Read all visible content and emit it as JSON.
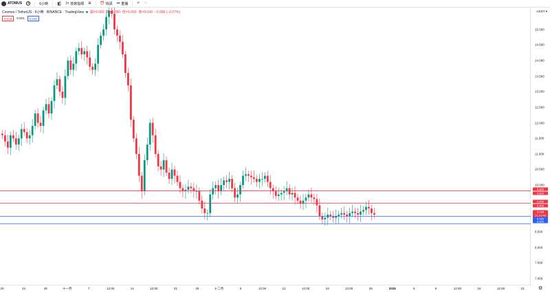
{
  "toolbar": {
    "symbol": "ATOMUS",
    "interval": "6小時",
    "indicators": "技術指標",
    "templates_icon": "grid-icon",
    "alert": "快訊",
    "replay": "重播",
    "undo_icon": "undo-icon",
    "redo_icon": "redo-icon"
  },
  "legend": {
    "title": "Cosmos / TetherUS · 6小時 · BINANCE · TradingView",
    "open": "開=9.060",
    "high": "高=9.080",
    "low": "低=9.003",
    "close": "收=9.049",
    "change": "−0.008 (−0.07%)"
  },
  "price_boxes": {
    "sell": "9.048",
    "spread": "0.001",
    "buy": "9.049"
  },
  "currency": "USDT ▾",
  "y_ticks": [
    "15.000",
    "14.500",
    "14.000",
    "13.500",
    "13.000",
    "12.500",
    "12.000",
    "11.500",
    "11.000",
    "10.500",
    "10.000",
    "9.500",
    "9.000",
    "8.500",
    "8.000",
    "7.500",
    "7.000"
  ],
  "x_ticks": [
    {
      "label": "20",
      "bold": false
    },
    {
      "label": "24",
      "bold": false
    },
    {
      "label": "28",
      "bold": false
    },
    {
      "label": "十一月",
      "bold": false
    },
    {
      "label": "7",
      "bold": false
    },
    {
      "label": "12:00",
      "bold": false
    },
    {
      "label": "14",
      "bold": false
    },
    {
      "label": "12:00",
      "bold": false
    },
    {
      "label": "21",
      "bold": false
    },
    {
      "label": "25",
      "bold": false
    },
    {
      "label": "十二月",
      "bold": false
    },
    {
      "label": "5",
      "bold": false
    },
    {
      "label": "12:00",
      "bold": false
    },
    {
      "label": "12",
      "bold": false
    },
    {
      "label": "12:00",
      "bold": false
    },
    {
      "label": "19",
      "bold": false
    },
    {
      "label": "12:00",
      "bold": false
    },
    {
      "label": "26",
      "bold": false
    },
    {
      "label": "2025",
      "bold": true
    },
    {
      "label": "5",
      "bold": false
    },
    {
      "label": "9",
      "bold": false
    },
    {
      "label": "12:00",
      "bold": false
    },
    {
      "label": "16",
      "bold": false
    },
    {
      "label": "12:00",
      "bold": false
    },
    {
      "label": "23",
      "bold": false
    }
  ],
  "horizontal_lines": [
    {
      "price": 9.813,
      "color": "#f23645",
      "tag1": "9.820",
      "tag2": "9.805"
    },
    {
      "price": 9.415,
      "color": "#f23645",
      "tag1": "9.450",
      "tag2": "9.400"
    },
    {
      "price": 9.0,
      "color": "#2962ff",
      "tag1": "",
      "tag2": ""
    },
    {
      "price": 8.76,
      "color": "#2962ff",
      "tag1": "8.820",
      "tag2": ""
    }
  ],
  "last_price": {
    "value": "9.048",
    "countdown": "01:21:43",
    "blue": "8.989"
  },
  "colors": {
    "up": "#089981",
    "down": "#f23645",
    "red_line": "#f23645",
    "blue_line": "#2962ff"
  },
  "chart_data": {
    "type": "candlestick",
    "ylim": [
      6.8,
      15.7
    ],
    "ohlc_closes": [
      11.6,
      11.4,
      11.2,
      11.6,
      11.5,
      11.3,
      11.5,
      11.8,
      11.7,
      11.5,
      11.6,
      11.9,
      12.3,
      12.0,
      11.9,
      12.4,
      12.6,
      12.3,
      12.7,
      13.2,
      13.4,
      13.0,
      12.8,
      13.5,
      14.0,
      13.7,
      13.9,
      14.3,
      14.4,
      14.2,
      14.3,
      14.1,
      13.8,
      13.7,
      13.9,
      14.5,
      14.8,
      15.0,
      15.4,
      15.6,
      15.5,
      15.0,
      14.8,
      14.6,
      14.2,
      13.6,
      13.2,
      12.1,
      11.5,
      11.0,
      10.3,
      9.8,
      10.8,
      11.3,
      12.0,
      11.6,
      11.0,
      10.6,
      10.5,
      10.8,
      10.4,
      10.2,
      10.5,
      10.3,
      10.1,
      9.9,
      9.8,
      9.85,
      9.95,
      9.9,
      9.8,
      9.8,
      9.5,
      9.25,
      9.1,
      9.1,
      9.7,
      9.9,
      10.0,
      9.8,
      10.0,
      10.15,
      10.1,
      10.2,
      9.9,
      9.6,
      9.7,
      10.0,
      10.3,
      10.35,
      10.3,
      10.25,
      10.2,
      10.1,
      10.2,
      10.2,
      10.3,
      10.1,
      9.9,
      9.8,
      9.65,
      9.7,
      9.75,
      9.8,
      9.9,
      9.7,
      9.75,
      9.6,
      9.5,
      9.4,
      9.5,
      9.6,
      9.7,
      9.6,
      9.55,
      9.35,
      9.0,
      8.9,
      8.95,
      9.05,
      9.0,
      8.95,
      9.0,
      9.05,
      9.1,
      9.05,
      9.0,
      9.1,
      9.15,
      9.1,
      9.05,
      9.15,
      9.2,
      9.3,
      9.25,
      9.1,
      9.05
    ]
  }
}
